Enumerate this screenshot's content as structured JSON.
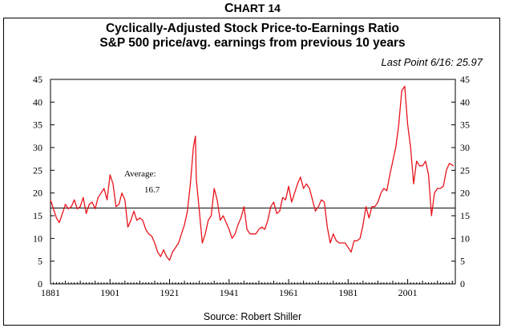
{
  "chart_label": "CHART 14",
  "chart_data": {
    "type": "line",
    "title": "Cyclically-Adjusted Stock Price-to-Earnings Ratio",
    "subtitle": "S&P 500 price/avg. earnings from previous 10 years",
    "last_point": "Last Point 6/16:  25.97",
    "source": "Source: Robert Shiller",
    "xlim": [
      1881,
      2017
    ],
    "ylim": [
      0,
      45
    ],
    "x_ticks": [
      "1881",
      "1901",
      "1921",
      "1941",
      "1961",
      "1981",
      "2001"
    ],
    "x_tick_values": [
      1881,
      1901,
      1921,
      1941,
      1961,
      1981,
      2001
    ],
    "y_ticks": [
      "0",
      "5",
      "10",
      "15",
      "20",
      "25",
      "30",
      "35",
      "40",
      "45"
    ],
    "y_tick_values": [
      0,
      5,
      10,
      15,
      20,
      25,
      30,
      35,
      40,
      45
    ],
    "average": {
      "label_line1": "Average:",
      "label_line2": "16.7",
      "value": 16.7
    },
    "series": [
      {
        "color": "#e8141c",
        "x": [
          1881,
          1882,
          1883,
          1884,
          1885,
          1886,
          1887,
          1888,
          1889,
          1890,
          1891,
          1892,
          1893,
          1894,
          1895,
          1896,
          1897,
          1898,
          1899,
          1900,
          1901,
          1902,
          1903,
          1904,
          1905,
          1906,
          1907,
          1908,
          1909,
          1910,
          1911,
          1912,
          1913,
          1914,
          1915,
          1916,
          1917,
          1918,
          1919,
          1920,
          1921,
          1922,
          1923,
          1924,
          1925,
          1926,
          1927,
          1928,
          1929,
          1929.7,
          1930,
          1931,
          1932,
          1933,
          1934,
          1935,
          1936,
          1937,
          1938,
          1939,
          1940,
          1941,
          1942,
          1943,
          1944,
          1945,
          1946,
          1947,
          1948,
          1949,
          1950,
          1951,
          1952,
          1953,
          1954,
          1955,
          1956,
          1957,
          1958,
          1959,
          1960,
          1961,
          1962,
          1963,
          1964,
          1965,
          1966,
          1967,
          1968,
          1969,
          1970,
          1971,
          1972,
          1973,
          1974,
          1975,
          1976,
          1977,
          1978,
          1979,
          1980,
          1981,
          1982,
          1983,
          1984,
          1985,
          1986,
          1987,
          1988,
          1989,
          1990,
          1991,
          1992,
          1993,
          1994,
          1995,
          1996,
          1997,
          1998,
          1999,
          2000,
          2001,
          2002,
          2003,
          2004,
          2005,
          2006,
          2007,
          2008,
          2009,
          2010,
          2011,
          2012,
          2013,
          2014,
          2015,
          2016.4
        ],
        "values": [
          18.5,
          16.5,
          14.5,
          13.5,
          15.5,
          17.5,
          16.5,
          17,
          18.5,
          16.5,
          17,
          19,
          15.5,
          17.5,
          18,
          16.5,
          19,
          20,
          21,
          18.5,
          24,
          22,
          17,
          17.5,
          20,
          18.5,
          12.5,
          14,
          16,
          14,
          14.5,
          14,
          12,
          11,
          10.5,
          9,
          7,
          6,
          7.5,
          6,
          5.2,
          7,
          8,
          9,
          11,
          13,
          16,
          22,
          30,
          32.5,
          23,
          16,
          9,
          11,
          14,
          15,
          21,
          18.5,
          14,
          15,
          13.5,
          12,
          10,
          11,
          13,
          14.5,
          17,
          12,
          11,
          11,
          11,
          12,
          12.5,
          12,
          14,
          17,
          18,
          15.5,
          16,
          19,
          18.5,
          21.5,
          18,
          20,
          22,
          23.5,
          21,
          22,
          21,
          18.5,
          16,
          17,
          18.5,
          18,
          12.5,
          9,
          11,
          9.5,
          9,
          9,
          9,
          8,
          7,
          9.5,
          9.5,
          10,
          13,
          17,
          14.5,
          17,
          17,
          18,
          20,
          21,
          20.5,
          24,
          27,
          30,
          35,
          42.5,
          43.5,
          35,
          30,
          22,
          27,
          26,
          26,
          27,
          24,
          15,
          20,
          21,
          21,
          21.5,
          25,
          26.5,
          25.97
        ]
      }
    ]
  }
}
